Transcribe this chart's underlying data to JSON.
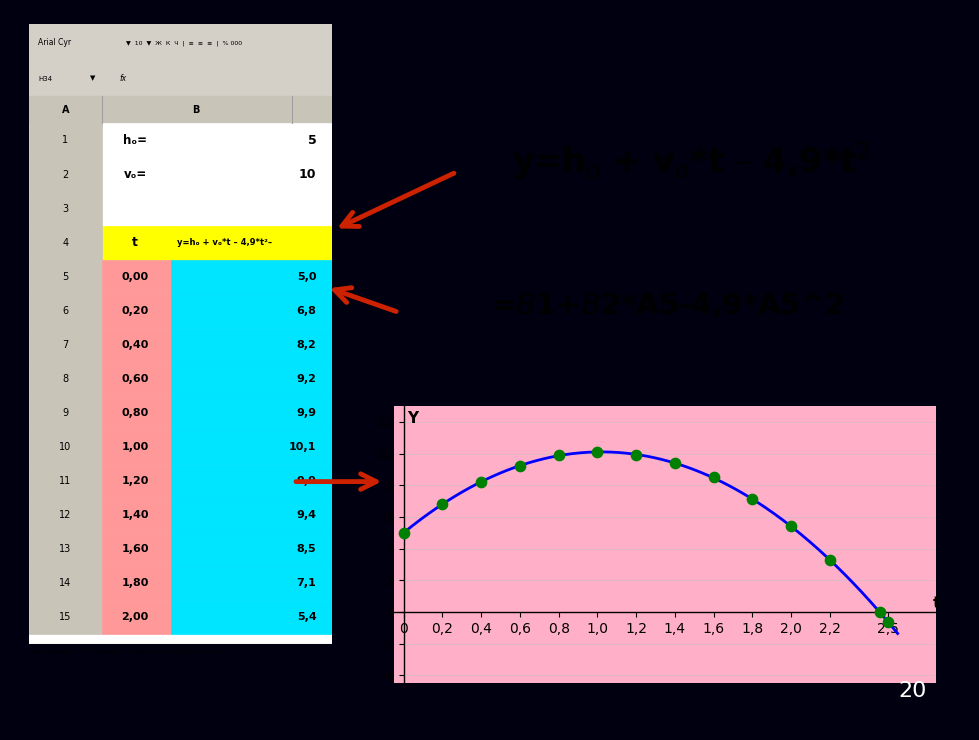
{
  "background_color": "#000010",
  "spreadsheet": {
    "t_values": [
      0.0,
      0.2,
      0.4,
      0.6,
      0.8,
      1.0,
      1.2,
      1.4,
      1.6,
      1.8,
      2.0,
      2.2,
      2.46
    ],
    "y_values": [
      5.0,
      6.8,
      8.2,
      9.2,
      9.9,
      10.1,
      9.9,
      9.4,
      8.5,
      7.1,
      5.4,
      3.3,
      0.0
    ]
  },
  "chart": {
    "bg_color": "#ffb0c8",
    "border_color": "#ffff00",
    "line_color": "blue",
    "marker_color": "#008000",
    "xlabel": "t",
    "ylabel": "Y",
    "xlim": [
      -0.05,
      2.75
    ],
    "ylim": [
      -4.5,
      13.0
    ],
    "xticks": [
      0,
      0.2,
      0.4,
      0.6,
      0.8,
      1.0,
      1.2,
      1.4,
      1.6,
      1.8,
      2.0,
      2.2,
      2.5
    ],
    "yticks": [
      -4,
      -2,
      0,
      2,
      4,
      6,
      8,
      10,
      12
    ]
  },
  "page_number": "20",
  "arrow_color": "#cc2200",
  "spreadsheet_pink": "#ff9999",
  "spreadsheet_cyan": "#00e5ff",
  "spreadsheet_yellow": "#ffff00",
  "header_bg": "#e8e8d0",
  "toolbar_bg": "#d4d0c8",
  "col_header_bg": "#c8c4b8"
}
